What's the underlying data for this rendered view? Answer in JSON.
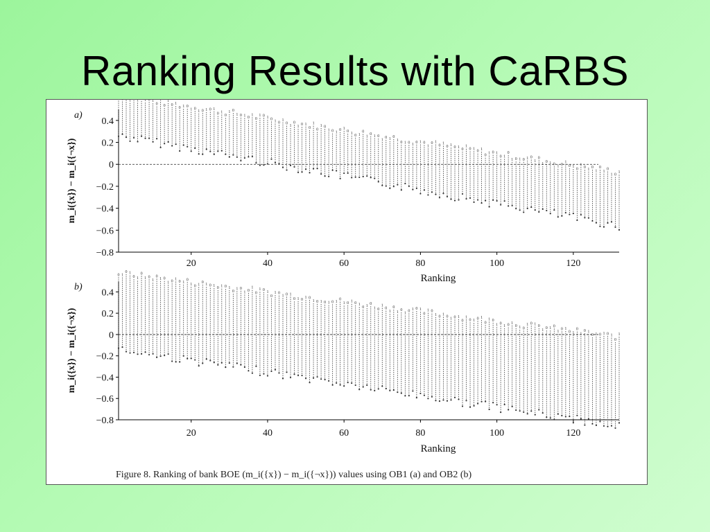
{
  "slide": {
    "title": "Ranking Results with CaRBS"
  },
  "figure": {
    "caption": "Figure 8.  Ranking of bank BOE (m_i({x}) − m_i({¬x})) values using OB1 (a) and OB2 (b)"
  },
  "chart_data": [
    {
      "type": "scatter",
      "panel_label": "a)",
      "xlabel": "Ranking",
      "ylabel": "m_i({x}) − m_i({¬x})",
      "xlim": [
        1,
        132
      ],
      "ylim": [
        -0.8,
        0.5
      ],
      "xticks": [
        20,
        40,
        60,
        80,
        100,
        120
      ],
      "yticks": [
        0.4,
        0.2,
        0,
        -0.2,
        -0.4,
        -0.6,
        -0.8
      ],
      "reference_line_y": 0,
      "n_points": 132,
      "series_trend": {
        "first_rank_range": [
          0.3,
          0.6
        ],
        "last_rank_range": [
          -0.52,
          -0.1
        ]
      },
      "colors": {
        "marks": "#333333",
        "axis": "#000000"
      }
    },
    {
      "type": "scatter",
      "panel_label": "b)",
      "xlabel": "Ranking",
      "ylabel": "m_i({x}) − m_i({¬x})",
      "xlim": [
        1,
        132
      ],
      "ylim": [
        -0.8,
        0.5
      ],
      "xticks": [
        20,
        40,
        60,
        80,
        100,
        120
      ],
      "yticks": [
        0.4,
        0.2,
        0,
        -0.2,
        -0.4,
        -0.6,
        -0.8
      ],
      "reference_line_y": 0,
      "n_points": 132,
      "series_trend": {
        "first_rank_range": [
          -0.1,
          0.55
        ],
        "last_rank_range": [
          -0.82,
          -0.05
        ]
      },
      "colors": {
        "marks": "#333333",
        "axis": "#000000"
      }
    }
  ]
}
